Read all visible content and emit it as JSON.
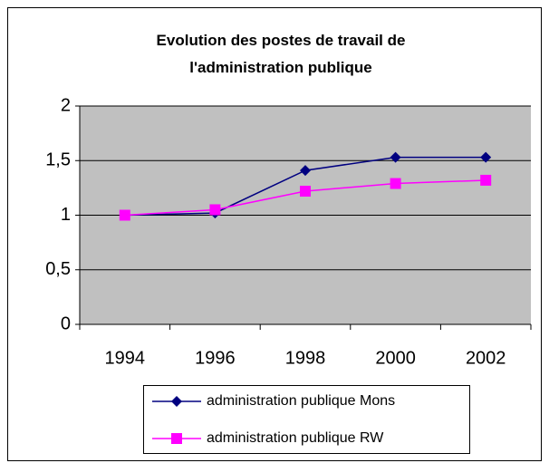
{
  "chart_data": {
    "type": "line",
    "title": "Evolution des postes de travail de l'administration publique",
    "categories": [
      "1994",
      "1996",
      "1998",
      "2000",
      "2002"
    ],
    "series": [
      {
        "name": "administration publique Mons",
        "color": "#000080",
        "marker": "diamond",
        "values": [
          1,
          1.02,
          1.41,
          1.53,
          1.53
        ]
      },
      {
        "name": "administration publique RW",
        "color": "#ff00ff",
        "marker": "square",
        "values": [
          1,
          1.05,
          1.22,
          1.29,
          1.32
        ]
      }
    ],
    "ylim": [
      0,
      2
    ],
    "yticks": [
      0,
      {
        "value": 0.5,
        "label": "0,5"
      },
      1,
      {
        "value": 1.5,
        "label": "1,5"
      },
      2
    ],
    "grid": true,
    "legend": "bottom"
  }
}
